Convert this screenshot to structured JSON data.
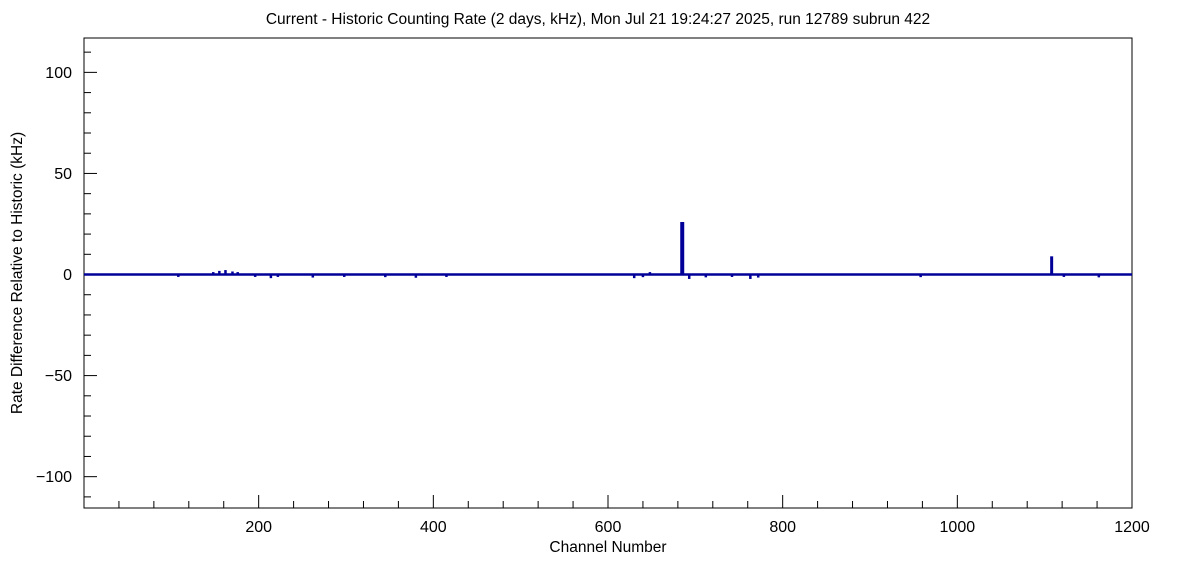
{
  "chart_data": {
    "type": "line",
    "title": "Current - Historic Counting Rate (2 days, kHz), Mon Jul 21 19:24:27 2025, run 12789 subrun 422",
    "xlabel": "Channel Number",
    "ylabel": "Rate Difference Relative to Historic (kHz)",
    "xlim": [
      0,
      1200
    ],
    "ylim": [
      -115.5,
      117
    ],
    "grid": false,
    "legend": "none",
    "line_color": "#000099",
    "frame_color": "#000000",
    "baseline": 0,
    "x_minor_step": 40,
    "y_minor_step": 10,
    "x_ticks": [
      {
        "v": 200,
        "label": "200"
      },
      {
        "v": 400,
        "label": "400"
      },
      {
        "v": 600,
        "label": "600"
      },
      {
        "v": 800,
        "label": "800"
      },
      {
        "v": 1000,
        "label": "1000"
      },
      {
        "v": 1200,
        "label": "1200"
      }
    ],
    "y_ticks": [
      {
        "v": -100,
        "label": "−100"
      },
      {
        "v": -50,
        "label": "−50"
      },
      {
        "v": 0,
        "label": "0"
      },
      {
        "v": 50,
        "label": "50"
      },
      {
        "v": 100,
        "label": "100"
      }
    ],
    "spikes": [
      {
        "x": 108,
        "y": -1.2
      },
      {
        "x": 148,
        "y": 1.2
      },
      {
        "x": 155,
        "y": 1.8
      },
      {
        "x": 162,
        "y": 2.2
      },
      {
        "x": 170,
        "y": 1.5
      },
      {
        "x": 176,
        "y": 1.2
      },
      {
        "x": 196,
        "y": -1.2
      },
      {
        "x": 214,
        "y": -1.8
      },
      {
        "x": 222,
        "y": -1.2
      },
      {
        "x": 262,
        "y": -1.5
      },
      {
        "x": 298,
        "y": -1.2
      },
      {
        "x": 345,
        "y": -1.3
      },
      {
        "x": 380,
        "y": -1.6
      },
      {
        "x": 415,
        "y": -1.2
      },
      {
        "x": 630,
        "y": -1.8
      },
      {
        "x": 640,
        "y": -1.3
      },
      {
        "x": 648,
        "y": 1.2
      },
      {
        "x": 685,
        "y": 26,
        "w": 4
      },
      {
        "x": 693,
        "y": -2.2
      },
      {
        "x": 712,
        "y": -1.4
      },
      {
        "x": 742,
        "y": -1.2
      },
      {
        "x": 763,
        "y": -2.2
      },
      {
        "x": 772,
        "y": -1.5
      },
      {
        "x": 958,
        "y": -1.3
      },
      {
        "x": 1108,
        "y": 9,
        "w": 3
      },
      {
        "x": 1122,
        "y": -1.2
      },
      {
        "x": 1162,
        "y": -1.4
      }
    ]
  }
}
